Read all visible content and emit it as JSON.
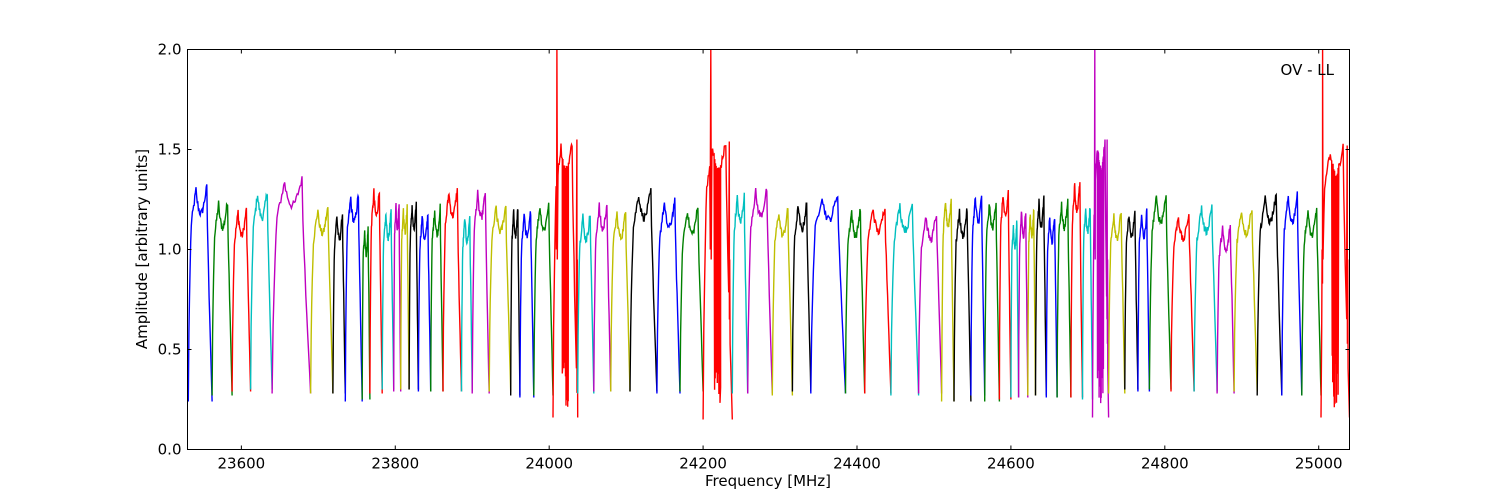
{
  "chart_data": {
    "type": "line",
    "title": "",
    "annotation": "OV - LL",
    "xlabel": "Frequency [MHz]",
    "ylabel": "Amplitude [arbitrary units]",
    "xlim": [
      23530,
      25040
    ],
    "ylim": [
      0.0,
      2.0
    ],
    "grid": false,
    "legend": "none",
    "x_ticks": [
      23600,
      23800,
      24000,
      24200,
      24400,
      24600,
      24800,
      25000
    ],
    "x_tick_labels": [
      "23600",
      "23800",
      "24000",
      "24200",
      "24400",
      "24600",
      "24800",
      "25000"
    ],
    "y_ticks": [
      0.0,
      0.5,
      1.0,
      1.5,
      2.0
    ],
    "y_tick_labels": [
      "0.0",
      "0.5",
      "1.0",
      "1.5",
      "2.0"
    ],
    "colors": [
      "#0000ff",
      "#008000",
      "#ff0000",
      "#00bfbf",
      "#bf00bf",
      "#bfbf00",
      "#000000"
    ],
    "series": [
      {
        "start": 23531,
        "end": 23562,
        "peak": 1.32,
        "low": 0.24
      },
      {
        "start": 23562,
        "end": 23588,
        "peak": 1.25,
        "low": 0.27
      },
      {
        "start": 23588,
        "end": 23612,
        "peak": 1.21,
        "low": 0.29
      },
      {
        "start": 23612,
        "end": 23640,
        "peak": 1.3,
        "low": 0.3
      },
      {
        "start": 23640,
        "end": 23690,
        "peak": 1.36,
        "low": 0.28
      },
      {
        "start": 23690,
        "end": 23719,
        "peak": 1.22,
        "low": 0.28
      },
      {
        "start": 23719,
        "end": 23735,
        "peak": 1.19,
        "low": 0.28
      },
      {
        "start": 23735,
        "end": 23757,
        "peak": 1.28,
        "low": 0.24
      },
      {
        "start": 23757,
        "end": 23767,
        "peak": 1.12,
        "low": 0.25
      },
      {
        "start": 23767,
        "end": 23783,
        "peak": 1.31,
        "low": 0.28
      },
      {
        "start": 23783,
        "end": 23798,
        "peak": 1.2,
        "low": 0.3
      },
      {
        "start": 23798,
        "end": 23807,
        "peak": 1.25,
        "low": 0.29
      },
      {
        "start": 23807,
        "end": 23818,
        "peak": 1.23,
        "low": 0.3
      },
      {
        "start": 23818,
        "end": 23830,
        "peak": 1.24,
        "low": 0.3
      },
      {
        "start": 23830,
        "end": 23846,
        "peak": 1.19,
        "low": 0.29
      },
      {
        "start": 23846,
        "end": 23862,
        "peak": 1.22,
        "low": 0.29
      },
      {
        "start": 23862,
        "end": 23886,
        "peak": 1.31,
        "low": 0.29
      },
      {
        "start": 23886,
        "end": 23900,
        "peak": 1.18,
        "low": 0.29
      },
      {
        "start": 23900,
        "end": 23922,
        "peak": 1.3,
        "low": 0.28
      },
      {
        "start": 23922,
        "end": 23950,
        "peak": 1.23,
        "low": 0.29
      },
      {
        "start": 23950,
        "end": 23962,
        "peak": 1.21,
        "low": 0.27
      },
      {
        "start": 23962,
        "end": 23980,
        "peak": 1.2,
        "low": 0.26
      },
      {
        "start": 23980,
        "end": 24005,
        "peak": 1.24,
        "low": 0.27
      },
      {
        "start": 24005,
        "end": 24037,
        "peak": 1.54,
        "low": 0.16,
        "spikes": [
          [
            24010,
            2.0
          ],
          [
            24036,
            1.55
          ]
        ]
      },
      {
        "start": 24037,
        "end": 24058,
        "peak": 1.19,
        "low": 0.28
      },
      {
        "start": 24058,
        "end": 24080,
        "peak": 1.24,
        "low": 0.29
      },
      {
        "start": 24080,
        "end": 24105,
        "peak": 1.2,
        "low": 0.29
      },
      {
        "start": 24105,
        "end": 24140,
        "peak": 1.3,
        "low": 0.29
      },
      {
        "start": 24140,
        "end": 24170,
        "peak": 1.25,
        "low": 0.28
      },
      {
        "start": 24170,
        "end": 24200,
        "peak": 1.22,
        "low": 0.29
      },
      {
        "start": 24200,
        "end": 24238,
        "peak": 1.54,
        "low": 0.15,
        "spikes": [
          [
            24210,
            2.0
          ],
          [
            24234,
            1.54
          ]
        ]
      },
      {
        "start": 24238,
        "end": 24258,
        "peak": 1.28,
        "low": 0.28
      },
      {
        "start": 24258,
        "end": 24290,
        "peak": 1.31,
        "low": 0.28
      },
      {
        "start": 24290,
        "end": 24316,
        "peak": 1.21,
        "low": 0.27
      },
      {
        "start": 24316,
        "end": 24340,
        "peak": 1.24,
        "low": 0.29
      },
      {
        "start": 24340,
        "end": 24385,
        "peak": 1.29,
        "low": 0.28
      },
      {
        "start": 24385,
        "end": 24410,
        "peak": 1.21,
        "low": 0.28
      },
      {
        "start": 24410,
        "end": 24444,
        "peak": 1.23,
        "low": 0.28
      },
      {
        "start": 24444,
        "end": 24480,
        "peak": 1.24,
        "low": 0.27
      },
      {
        "start": 24480,
        "end": 24510,
        "peak": 1.19,
        "low": 0.28
      },
      {
        "start": 24510,
        "end": 24526,
        "peak": 1.26,
        "low": 0.24
      },
      {
        "start": 24526,
        "end": 24548,
        "peak": 1.21,
        "low": 0.24
      },
      {
        "start": 24548,
        "end": 24566,
        "peak": 1.28,
        "low": 0.27
      },
      {
        "start": 24566,
        "end": 24585,
        "peak": 1.25,
        "low": 0.24
      },
      {
        "start": 24585,
        "end": 24600,
        "peak": 1.3,
        "low": 0.25
      },
      {
        "start": 24600,
        "end": 24610,
        "peak": 1.15,
        "low": 0.26
      },
      {
        "start": 24610,
        "end": 24622,
        "peak": 1.21,
        "low": 0.26
      },
      {
        "start": 24622,
        "end": 24632,
        "peak": 1.21,
        "low": 0.27
      },
      {
        "start": 24632,
        "end": 24646,
        "peak": 1.26,
        "low": 0.27
      },
      {
        "start": 24646,
        "end": 24660,
        "peak": 1.18,
        "low": 0.26
      },
      {
        "start": 24660,
        "end": 24678,
        "peak": 1.25,
        "low": 0.26
      },
      {
        "start": 24678,
        "end": 24693,
        "peak": 1.34,
        "low": 0.26
      },
      {
        "start": 24693,
        "end": 24706,
        "peak": 1.23,
        "low": 0.25
      },
      {
        "start": 24706,
        "end": 24727,
        "peak": 1.54,
        "low": 0.16,
        "spikes": [
          [
            24709,
            2.0
          ],
          [
            24725,
            1.55
          ]
        ]
      },
      {
        "start": 24727,
        "end": 24748,
        "peak": 1.2,
        "low": 0.28
      },
      {
        "start": 24748,
        "end": 24765,
        "peak": 1.2,
        "low": 0.3
      },
      {
        "start": 24765,
        "end": 24780,
        "peak": 1.2,
        "low": 0.29
      },
      {
        "start": 24780,
        "end": 24808,
        "peak": 1.28,
        "low": 0.3
      },
      {
        "start": 24808,
        "end": 24838,
        "peak": 1.19,
        "low": 0.29
      },
      {
        "start": 24838,
        "end": 24868,
        "peak": 1.23,
        "low": 0.29
      },
      {
        "start": 24868,
        "end": 24890,
        "peak": 1.13,
        "low": 0.28
      },
      {
        "start": 24890,
        "end": 24920,
        "peak": 1.22,
        "low": 0.29
      },
      {
        "start": 24920,
        "end": 24952,
        "peak": 1.28,
        "low": 0.27
      },
      {
        "start": 24952,
        "end": 24978,
        "peak": 1.28,
        "low": 0.27
      },
      {
        "start": 24978,
        "end": 25003,
        "peak": 1.21,
        "low": 0.27
      },
      {
        "start": 25003,
        "end": 25040,
        "peak": 1.52,
        "low": 0.16,
        "spikes": [
          [
            25005,
            2.0
          ],
          [
            25037,
            1.52
          ]
        ]
      }
    ]
  }
}
